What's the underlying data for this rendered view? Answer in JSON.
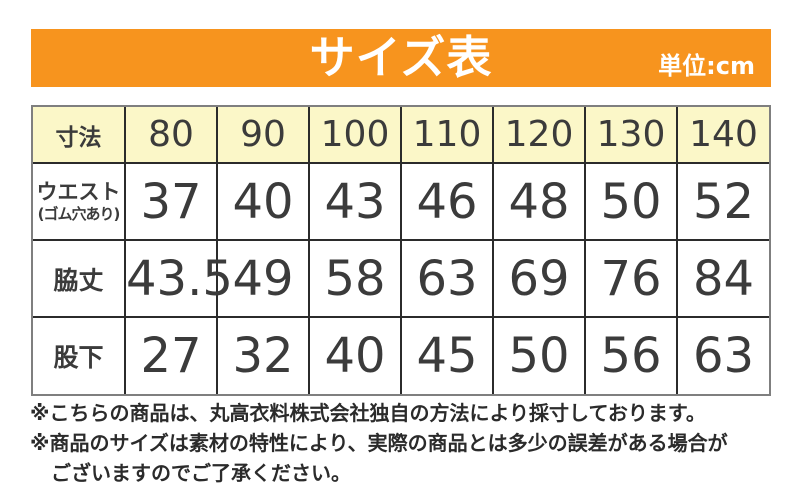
{
  "banner": {
    "title": "サイズ表",
    "unit": "単位:cm"
  },
  "table": {
    "corner": "寸法",
    "sizes": [
      "80",
      "90",
      "100",
      "110",
      "120",
      "130",
      "140"
    ],
    "rows": [
      {
        "label": "ウエスト",
        "sublabel": "(ゴム穴あり)",
        "values": [
          "37",
          "40",
          "43",
          "46",
          "48",
          "50",
          "52"
        ]
      },
      {
        "label": "脇丈",
        "values": [
          "43.5",
          "49",
          "58",
          "63",
          "69",
          "76",
          "84"
        ]
      },
      {
        "label": "股下",
        "values": [
          "27",
          "32",
          "40",
          "45",
          "50",
          "56",
          "63"
        ]
      }
    ]
  },
  "notes": {
    "line1": "※こちらの商品は、丸高衣料株式会社独自の方法により採寸しております。",
    "line2": "※商品のサイズは素材の特性により、実際の商品とは多少の誤差がある場合が",
    "line3": "ございますのでご了承ください。"
  },
  "colors": {
    "accent_orange": "#F7941E",
    "header_yellow": "#FBF7C8",
    "inner_border": "#2B2B2B",
    "outer_border": "#7F7F7F",
    "text": "#3B3B3B"
  },
  "chart_data": {
    "type": "table",
    "title": "サイズ表",
    "unit": "cm",
    "columns": [
      "寸法",
      "80",
      "90",
      "100",
      "110",
      "120",
      "130",
      "140"
    ],
    "rows": [
      {
        "label": "ウエスト(ゴム穴あり)",
        "values": [
          37,
          40,
          43,
          46,
          48,
          50,
          52
        ]
      },
      {
        "label": "脇丈",
        "values": [
          43.5,
          49,
          58,
          63,
          69,
          76,
          84
        ]
      },
      {
        "label": "股下",
        "values": [
          27,
          32,
          40,
          45,
          50,
          56,
          63
        ]
      }
    ],
    "notes": [
      "※こちらの商品は、丸高衣料株式会社独自の方法により採寸しております。",
      "※商品のサイズは素材の特性により、実際の商品とは多少の誤差がある場合がございますのでご了承ください。"
    ]
  }
}
